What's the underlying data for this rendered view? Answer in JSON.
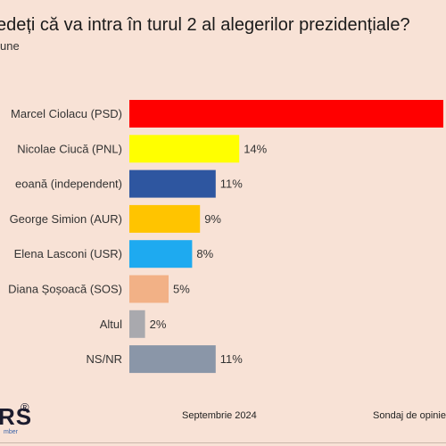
{
  "chart_data": {
    "type": "bar",
    "orientation": "horizontal",
    "title": "edeți că va intra în turul 2 al alegerilor prezidențiale?",
    "subtitle": "une",
    "categories": [
      "Marcel Ciolacu (PSD)",
      "Nicolae Ciucă (PNL)",
      "eoană (independent)",
      "George Simion (AUR)",
      "Elena Lasconi (USR)",
      "Diana Șoșoacă (SOS)",
      "Altul",
      "NS/NR"
    ],
    "values": [
      40,
      14,
      11,
      9,
      8,
      5,
      2,
      11
    ],
    "value_labels": [
      "",
      "14%",
      "11%",
      "9%",
      "8%",
      "5%",
      "2%",
      "11%"
    ],
    "colors": [
      "#ff0000",
      "#ffff00",
      "#2e56a0",
      "#ffc400",
      "#1eaaf0",
      "#f2b186",
      "#a9a9ae",
      "#8a96a8"
    ],
    "xlim": [
      0,
      40
    ],
    "grid": false,
    "legend": "none"
  },
  "footer": {
    "logo_text": "RS",
    "logo_reg": "®",
    "logo_sub": "mber",
    "date": "Septembrie 2024",
    "source": "Sondaj de opinie"
  }
}
